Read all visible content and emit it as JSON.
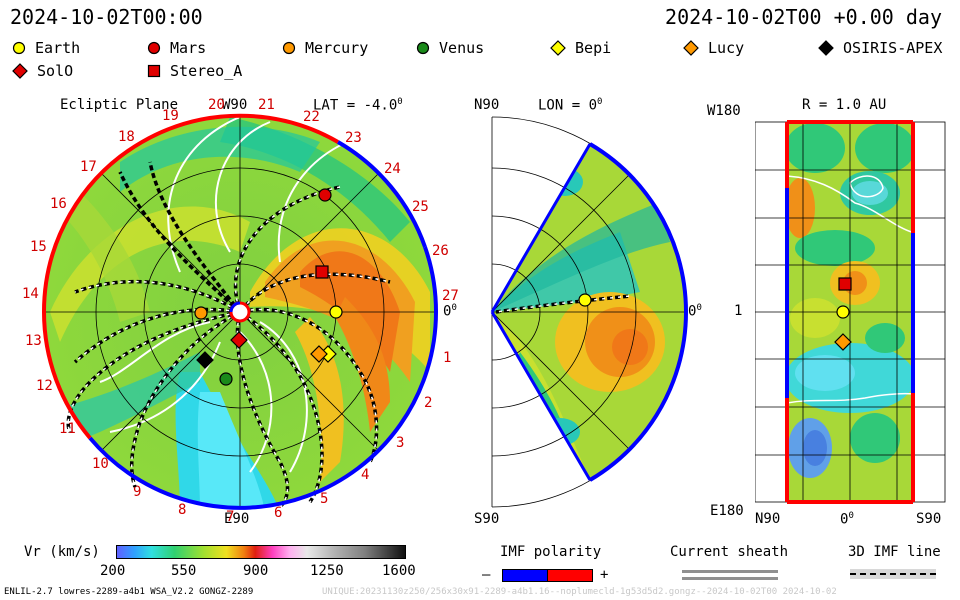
{
  "header": {
    "left_datetime": "2024-10-02T00:00",
    "right_datetime": "2024-10-02T00 +0.00 day"
  },
  "legend": {
    "items": [
      {
        "label": "Earth",
        "shape": "circle",
        "color": "#ffff00"
      },
      {
        "label": "Mars",
        "shape": "circle",
        "color": "#e00000"
      },
      {
        "label": "Mercury",
        "shape": "circle",
        "color": "#ff9900"
      },
      {
        "label": "Venus",
        "shape": "circle",
        "color": "#1a8a1a"
      },
      {
        "label": "Bepi",
        "shape": "diamond",
        "color": "#ffff00"
      },
      {
        "label": "Lucy",
        "shape": "diamond",
        "color": "#ff9900"
      },
      {
        "label": "OSIRIS-APEX",
        "shape": "diamond",
        "color": "#000000"
      },
      {
        "label": "SolO",
        "shape": "diamond",
        "color": "#e00000"
      },
      {
        "label": "Stereo_A",
        "shape": "square",
        "color": "#e00000"
      }
    ]
  },
  "ecliptic": {
    "title": "Ecliptic Plane",
    "top_label": "W90",
    "lat_label": "LAT = -4.0",
    "lat_degree": "0",
    "bottom_label": "E90",
    "right_label": "0",
    "right_degree": "0",
    "carrington_numbers": [
      "1",
      "2",
      "3",
      "4",
      "5",
      "6",
      "7",
      "8",
      "9",
      "10",
      "11",
      "12",
      "13",
      "14",
      "15",
      "16",
      "17",
      "18",
      "19",
      "20",
      "21",
      "22",
      "23",
      "24",
      "25",
      "26",
      "27"
    ]
  },
  "meridional": {
    "top_left": "N90",
    "lon_label": "LON = 0",
    "lon_degree": "0",
    "right_label": "0",
    "right_degree": "0",
    "bottom_left": "S90"
  },
  "radial": {
    "top_left": "W180",
    "r_label": "R = 1.0 AU",
    "mid_left": "1",
    "bottom_left": "E180",
    "x_left": "N90",
    "x_mid": "0",
    "x_mid_degree": "0",
    "x_right": "S90"
  },
  "colorbar": {
    "label": "Vr (km/s)",
    "ticks": [
      "200",
      "550",
      "900",
      "1250",
      "1600"
    ]
  },
  "imf": {
    "title": "IMF polarity",
    "minus": "–",
    "plus": "+",
    "neg_color": "#0000ff",
    "pos_color": "#ff0000"
  },
  "sheath": {
    "title": "Current sheath"
  },
  "imf3d": {
    "title": "3D IMF line"
  },
  "footer": {
    "model": "ENLIL-2.7 lowres-2289-a4b1 WSA_V2.2 GONGZ-2289",
    "run_id": "UNIQUE:20231130z250/256x30x91-2289-a4b1.16--noplumecld-1g53d5d2.gongz--2024-10-02T00   2024-10-02"
  }
}
